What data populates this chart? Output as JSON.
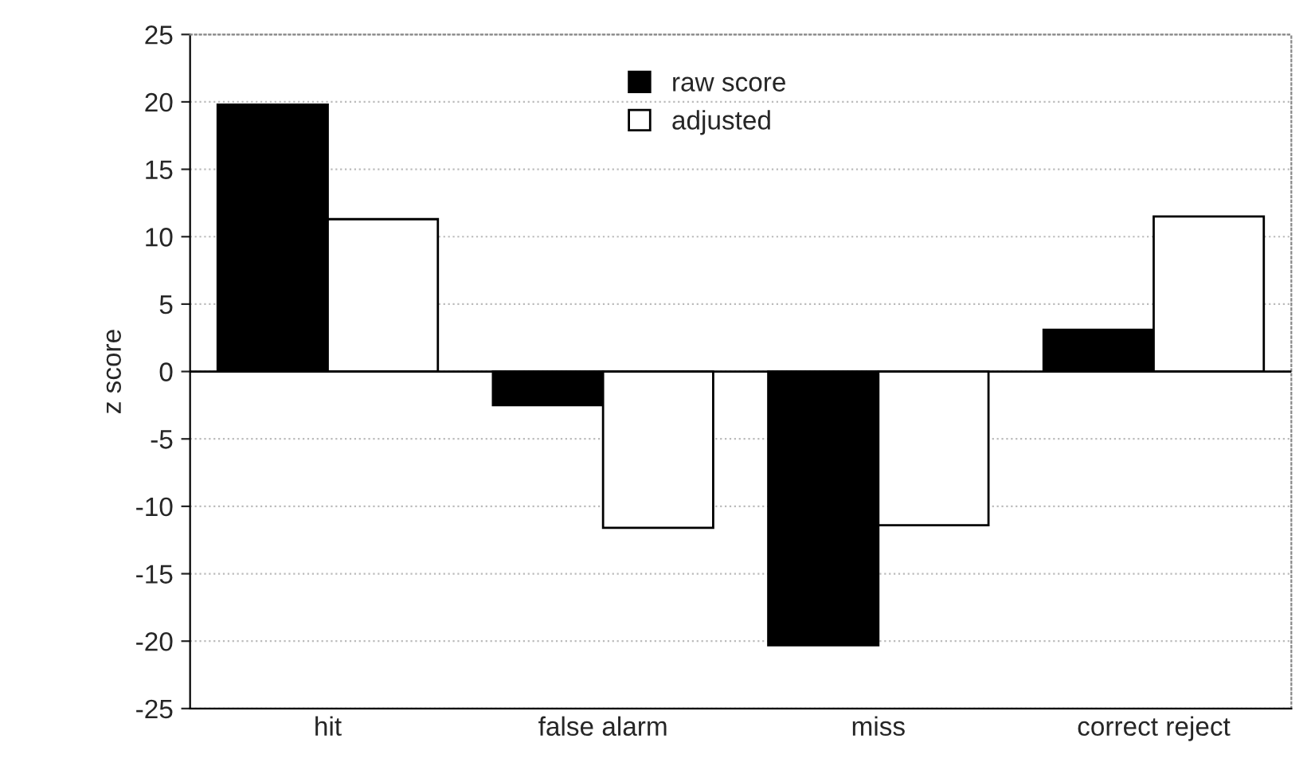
{
  "chart_data": {
    "type": "bar",
    "ylabel": "z score",
    "categories": [
      "hit",
      "false alarm",
      "miss",
      "correct reject"
    ],
    "series": [
      {
        "name": "raw score",
        "color": "#000000",
        "values": [
          19.8,
          -2.5,
          -20.3,
          3.1
        ]
      },
      {
        "name": "adjusted",
        "color": "#ffffff",
        "values": [
          11.3,
          -11.6,
          -11.4,
          11.5
        ]
      }
    ],
    "ylim": [
      -25,
      25
    ],
    "yticks": [
      -25,
      -20,
      -15,
      -10,
      -5,
      0,
      5,
      10,
      15,
      20,
      25
    ],
    "grid": "y",
    "legend": "top"
  }
}
